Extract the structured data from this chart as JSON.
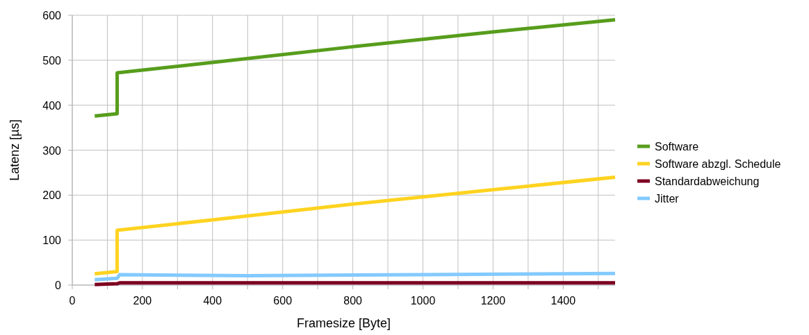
{
  "chart_data": {
    "type": "line",
    "xlabel": "Framesize [Byte]",
    "ylabel": "Latenz [µs]",
    "xlim": [
      0,
      1548
    ],
    "ylim": [
      0,
      600
    ],
    "xticks": [
      0,
      {
        "value": 100,
        "label": null
      },
      200,
      {
        "value": 300,
        "label": null
      },
      400,
      {
        "value": 500,
        "label": null
      },
      600,
      {
        "value": 700,
        "label": null
      },
      800,
      {
        "value": 900,
        "label": null
      },
      1000,
      {
        "value": 1100,
        "label": null
      },
      1200,
      {
        "value": 1300,
        "label": null
      },
      1400,
      {
        "value": 1500,
        "label": null
      }
    ],
    "yticks": [
      0,
      100,
      200,
      300,
      400,
      500,
      600
    ],
    "grid": true,
    "legend": "right",
    "line_style": "solid",
    "marker": "none",
    "series": [
      {
        "name": "Software",
        "color": "#579d1c",
        "x": [
          64,
          128,
          128,
          400,
          800,
          1200,
          1548
        ],
        "values": [
          376,
          381,
          472,
          495,
          530,
          563,
          590
        ]
      },
      {
        "name": "Software abzgl. Schedule",
        "color": "#ffd320",
        "x": [
          64,
          128,
          128,
          400,
          800,
          1200,
          1548
        ],
        "values": [
          25,
          30,
          122,
          145,
          180,
          212,
          240
        ]
      },
      {
        "name": "Standardabweichung",
        "color": "#7e0021",
        "x": [
          64,
          128,
          135,
          800,
          1548
        ],
        "values": [
          1,
          3,
          5,
          5,
          5
        ]
      },
      {
        "name": "Jitter",
        "color": "#83caff",
        "x": [
          64,
          128,
          135,
          500,
          1000,
          1548
        ],
        "values": [
          12,
          15,
          23,
          21,
          23,
          26
        ]
      }
    ]
  }
}
